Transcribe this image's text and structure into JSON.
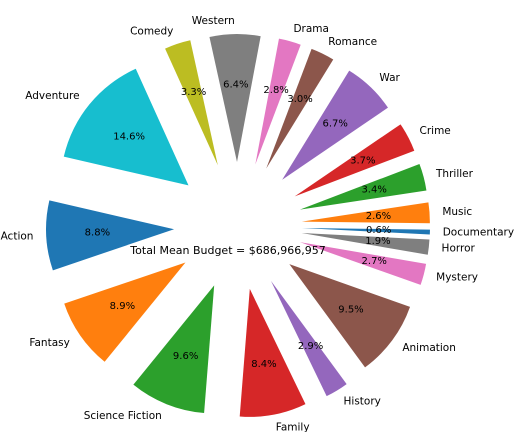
{
  "chart_data": {
    "type": "pie",
    "annotation": "Total Mean Budget = $686,966,957",
    "slices": [
      {
        "label": "Action",
        "pct": "8.8%",
        "value": 8.8,
        "color": "#1f77b4"
      },
      {
        "label": "Fantasy",
        "pct": "8.9%",
        "value": 8.9,
        "color": "#ff7f0e"
      },
      {
        "label": "Science Fiction",
        "pct": "9.6%",
        "value": 9.6,
        "color": "#2ca02c"
      },
      {
        "label": "Family",
        "pct": "8.4%",
        "value": 8.4,
        "color": "#d62728"
      },
      {
        "label": "History",
        "pct": "2.9%",
        "value": 2.9,
        "color": "#9467bd"
      },
      {
        "label": "Animation",
        "pct": "9.5%",
        "value": 9.5,
        "color": "#8c564b"
      },
      {
        "label": "Mystery",
        "pct": "2.7%",
        "value": 2.7,
        "color": "#e377c2"
      },
      {
        "label": "Horror",
        "pct": "1.9%",
        "value": 1.9,
        "color": "#7f7f7f"
      },
      {
        "label": "Documentary",
        "pct": "0.6%",
        "value": 0.6,
        "color": "#1f77b4"
      },
      {
        "label": "Music",
        "pct": "2.6%",
        "value": 2.6,
        "color": "#ff7f0e"
      },
      {
        "label": "Thriller",
        "pct": "3.4%",
        "value": 3.4,
        "color": "#2ca02c"
      },
      {
        "label": "Crime",
        "pct": "3.7%",
        "value": 3.7,
        "color": "#d62728"
      },
      {
        "label": "War",
        "pct": "6.7%",
        "value": 6.7,
        "color": "#9467bd"
      },
      {
        "label": "Romance",
        "pct": "3.0%",
        "value": 3.0,
        "color": "#8c564b"
      },
      {
        "label": "Drama",
        "pct": "2.8%",
        "value": 2.8,
        "color": "#e377c2"
      },
      {
        "label": "Western",
        "pct": "6.4%",
        "value": 6.4,
        "color": "#7f7f7f"
      },
      {
        "label": "Comedy",
        "pct": "3.3%",
        "value": 3.3,
        "color": "#bcbd22"
      },
      {
        "label": "Adventure",
        "pct": "14.6%",
        "value": 14.6,
        "color": "#17becf"
      }
    ]
  }
}
